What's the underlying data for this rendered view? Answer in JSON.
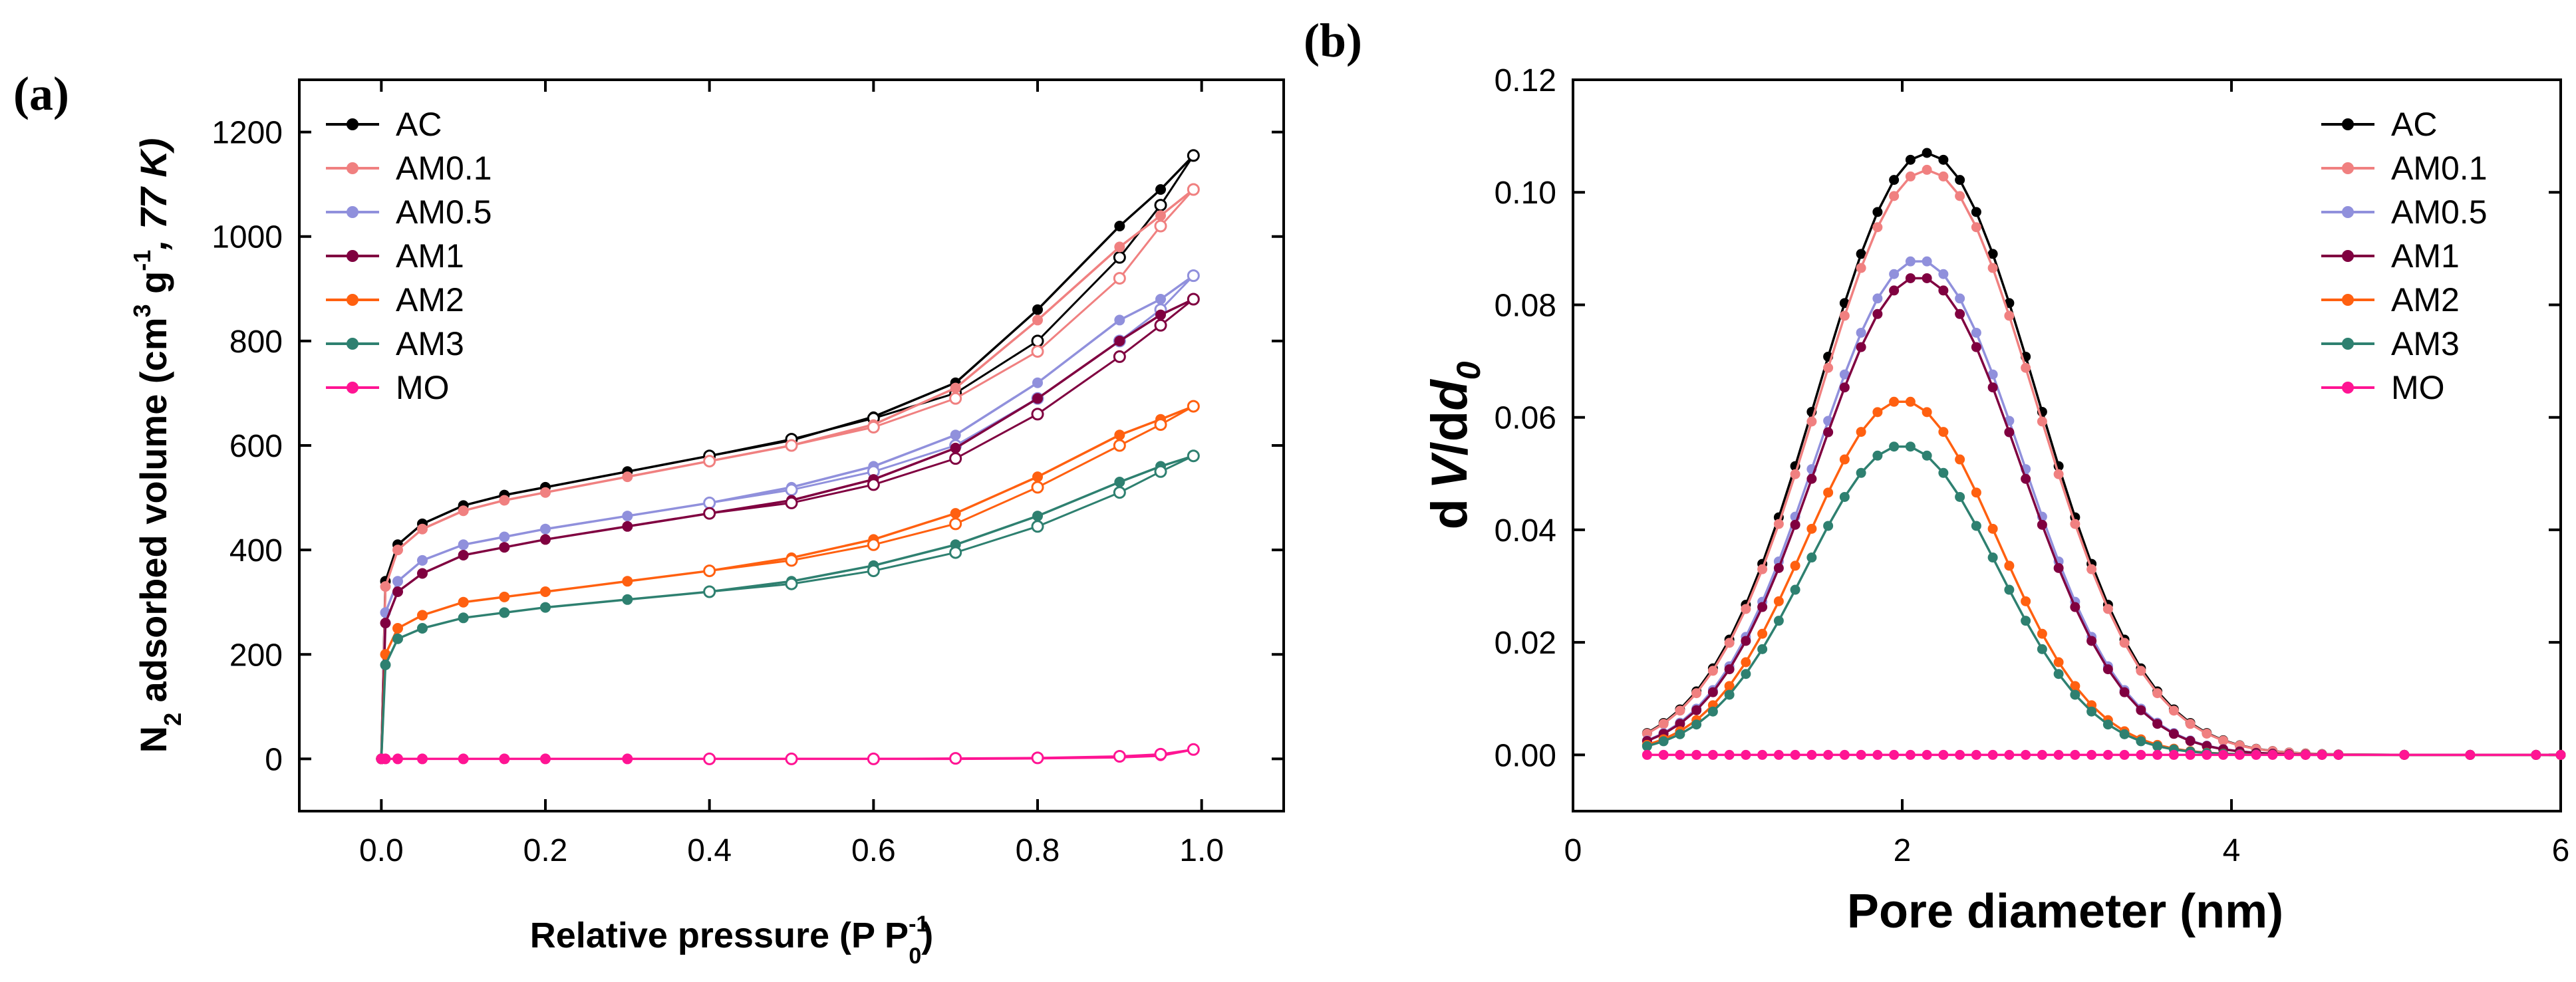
{
  "chart_data": [
    {
      "type": "line",
      "panel_label": "(a)",
      "title": "",
      "xlabel_parts": [
        "Relative pressure (P P",
        "-1",
        "0",
        ")"
      ],
      "ylabel_parts": [
        "N",
        "2",
        " adsorbed volume (cm",
        "3",
        " g",
        "-1",
        ", 77 K)"
      ],
      "xlim": [
        -0.1,
        1.1
      ],
      "ylim": [
        -100,
        1300
      ],
      "xticks": [
        0.0,
        0.2,
        0.4,
        0.6,
        0.8,
        1.0
      ],
      "xtick_labels": [
        "0.0",
        "0.2",
        "0.4",
        "0.6",
        "0.8",
        "1.0"
      ],
      "yticks": [
        0,
        200,
        400,
        600,
        800,
        1000,
        1200
      ],
      "ytick_labels": [
        "0",
        "200",
        "400",
        "600",
        "800",
        "1000",
        "1200"
      ],
      "grid": false,
      "legend": "top-left",
      "note": "filled markers = adsorption branch, open markers = desorption branch",
      "x": [
        0.0,
        0.005,
        0.02,
        0.05,
        0.1,
        0.15,
        0.2,
        0.3,
        0.4,
        0.5,
        0.6,
        0.7,
        0.8,
        0.9,
        0.95,
        0.99
      ],
      "series": [
        {
          "name": "AC",
          "color": "#000000",
          "adsorption": [
            0,
            340,
            410,
            450,
            485,
            505,
            520,
            550,
            580,
            610,
            655,
            720,
            860,
            1020,
            1090,
            1155
          ],
          "desorption_x": [
            0.4,
            0.5,
            0.6,
            0.7,
            0.8,
            0.9,
            0.95,
            0.99
          ],
          "desorption": [
            580,
            612,
            652,
            700,
            800,
            960,
            1060,
            1155
          ]
        },
        {
          "name": "AM0.1",
          "color": "#f08080",
          "adsorption": [
            0,
            330,
            400,
            440,
            475,
            495,
            510,
            540,
            570,
            600,
            640,
            710,
            840,
            980,
            1040,
            1090
          ],
          "desorption_x": [
            0.4,
            0.5,
            0.6,
            0.7,
            0.8,
            0.9,
            0.95,
            0.99
          ],
          "desorption": [
            570,
            600,
            635,
            690,
            780,
            920,
            1020,
            1090
          ]
        },
        {
          "name": "AM0.5",
          "color": "#9090dc",
          "adsorption": [
            0,
            280,
            340,
            380,
            410,
            425,
            440,
            465,
            490,
            520,
            560,
            620,
            720,
            840,
            880,
            925
          ],
          "desorption_x": [
            0.4,
            0.5,
            0.6,
            0.7,
            0.8,
            0.9,
            0.95,
            0.99
          ],
          "desorption": [
            490,
            515,
            550,
            600,
            690,
            800,
            860,
            925
          ]
        },
        {
          "name": "AM1",
          "color": "#800040",
          "adsorption": [
            0,
            260,
            320,
            355,
            390,
            405,
            420,
            445,
            470,
            495,
            535,
            595,
            690,
            800,
            850,
            880
          ],
          "desorption_x": [
            0.4,
            0.5,
            0.6,
            0.7,
            0.8,
            0.9,
            0.95,
            0.99
          ],
          "desorption": [
            470,
            490,
            525,
            575,
            660,
            770,
            830,
            880
          ]
        },
        {
          "name": "AM2",
          "color": "#ff6010",
          "adsorption": [
            0,
            200,
            250,
            275,
            300,
            310,
            320,
            340,
            360,
            385,
            420,
            470,
            540,
            620,
            650,
            675
          ],
          "desorption_x": [
            0.4,
            0.5,
            0.6,
            0.7,
            0.8,
            0.9,
            0.95,
            0.99
          ],
          "desorption": [
            360,
            380,
            410,
            450,
            520,
            600,
            640,
            675
          ]
        },
        {
          "name": "AM3",
          "color": "#2e8070",
          "adsorption": [
            0,
            180,
            230,
            250,
            270,
            280,
            290,
            305,
            320,
            340,
            370,
            410,
            465,
            530,
            560,
            580
          ],
          "desorption_x": [
            0.4,
            0.5,
            0.6,
            0.7,
            0.8,
            0.9,
            0.95,
            0.99
          ],
          "desorption": [
            320,
            335,
            360,
            395,
            445,
            510,
            550,
            580
          ]
        },
        {
          "name": "MO",
          "color": "#ff1493",
          "adsorption": [
            0,
            0,
            0,
            0,
            0,
            0,
            0,
            0,
            0,
            0,
            0,
            0,
            1,
            3,
            6,
            18
          ],
          "desorption_x": [
            0.4,
            0.5,
            0.6,
            0.7,
            0.8,
            0.9,
            0.95,
            0.99
          ],
          "desorption": [
            0,
            0,
            0,
            1,
            2,
            5,
            9,
            18
          ]
        }
      ]
    },
    {
      "type": "line",
      "panel_label": "(b)",
      "title": "",
      "xlabel": "Pore diameter (nm)",
      "ylabel_parts": [
        "d",
        "V",
        "/d",
        "d",
        "0"
      ],
      "xlim": [
        0,
        6
      ],
      "ylim": [
        -0.01,
        0.12
      ],
      "xticks": [
        0,
        2,
        4,
        6
      ],
      "xtick_labels": [
        "0",
        "2",
        "4",
        "6"
      ],
      "yticks": [
        0.0,
        0.02,
        0.04,
        0.06,
        0.08,
        0.1,
        0.12
      ],
      "ytick_labels": [
        "0.00",
        "0.02",
        "0.04",
        "0.06",
        "0.08",
        "0.10",
        "0.12"
      ],
      "grid": false,
      "legend": "top-right",
      "series": [
        {
          "name": "AC",
          "color": "#000000",
          "peak_x": 2.15,
          "peak": 0.107,
          "sigma": 0.66
        },
        {
          "name": "AM0.1",
          "color": "#f08080",
          "peak_x": 2.15,
          "peak": 0.104,
          "sigma": 0.66
        },
        {
          "name": "AM0.5",
          "color": "#9090dc",
          "peak_x": 2.1,
          "peak": 0.088,
          "sigma": 0.62
        },
        {
          "name": "AM1",
          "color": "#800040",
          "peak_x": 2.1,
          "peak": 0.085,
          "sigma": 0.62
        },
        {
          "name": "AM2",
          "color": "#ff6010",
          "peak_x": 2.0,
          "peak": 0.063,
          "sigma": 0.58
        },
        {
          "name": "AM3",
          "color": "#2e8070",
          "peak_x": 2.0,
          "peak": 0.055,
          "sigma": 0.58
        },
        {
          "name": "MO",
          "color": "#ff1493",
          "peak_x": 2.0,
          "peak": 0.0,
          "sigma": 0.6
        }
      ]
    }
  ]
}
